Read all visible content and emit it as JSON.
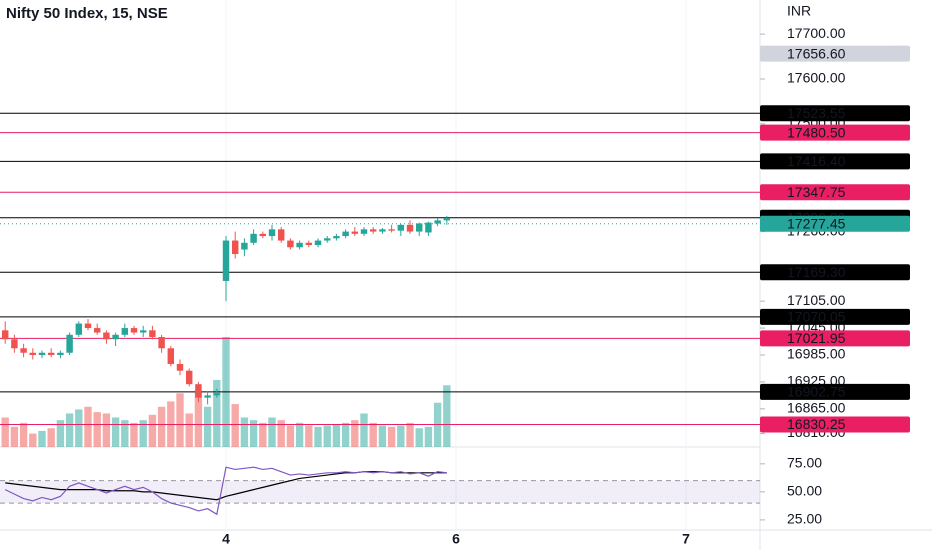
{
  "chart_data": {
    "type": "candlestick",
    "title": "Nifty 50 Index, 15, NSE",
    "currency": "INR",
    "up_color": "#26a69a",
    "down_color": "#ef5350",
    "xlim": [
      -0.565,
      82.04
    ],
    "xticks": [
      {
        "value": 24,
        "label": "4"
      },
      {
        "value": 49,
        "label": "6"
      },
      {
        "value": 74,
        "label": "7"
      }
    ],
    "ylim": [
      16780,
      17776
    ],
    "yticks": [
      {
        "value": 17700,
        "label": "17700.00"
      },
      {
        "value": 17600,
        "label": "17600.00"
      },
      {
        "value": 17500,
        "label": "17500.00"
      },
      {
        "value": 17260,
        "label": "17260.00"
      },
      {
        "value": 17105,
        "label": "17105.00"
      },
      {
        "value": 17045,
        "label": "17045.00"
      },
      {
        "value": 16985,
        "label": "16985.00"
      },
      {
        "value": 16925,
        "label": "16925.00"
      },
      {
        "value": 16865,
        "label": "16865.00"
      },
      {
        "value": 16810,
        "label": "16810.00"
      }
    ],
    "high_marker": {
      "value": 17656.6,
      "label": "17656.60",
      "color": "#d1d4dc"
    },
    "last_price": {
      "value": 17277.45,
      "label": "17277.45",
      "color": "#26a69a"
    },
    "levels": [
      {
        "value": 17523.55,
        "label": "17523.55",
        "color": "#000000"
      },
      {
        "value": 17480.5,
        "label": "17480.50",
        "color": "#e91e63"
      },
      {
        "value": 17416.4,
        "label": "17416.40",
        "color": "#000000"
      },
      {
        "value": 17347.75,
        "label": "17347.75",
        "color": "#e91e63"
      },
      {
        "value": 17290.8,
        "label": "17290.80",
        "color": "#000000"
      },
      {
        "value": 17169.3,
        "label": "17169.30",
        "color": "#000000"
      },
      {
        "value": 17070.05,
        "label": "17070.05",
        "color": "#000000"
      },
      {
        "value": 17021.95,
        "label": "17021.95",
        "color": "#e91e63"
      },
      {
        "value": 16902.75,
        "label": "16902.75",
        "color": "#000000"
      },
      {
        "value": 16830.25,
        "label": "16830.25",
        "color": "#e91e63"
      }
    ],
    "candles": {
      "open": [
        17040,
        17020,
        17000,
        16990,
        16985,
        16990,
        16985,
        16990,
        17030,
        17055,
        17045,
        17035,
        17020,
        17030,
        17045,
        17035,
        17040,
        17025,
        17000,
        16965,
        16950,
        16920,
        16890,
        16895,
        17150,
        17240,
        17220,
        17235,
        17255,
        17250,
        17265,
        17240,
        17225,
        17235,
        17230,
        17240,
        17245,
        17250,
        17260,
        17255,
        17265,
        17260,
        17265,
        17262,
        17275,
        17260,
        17258,
        17278,
        17285
      ],
      "high": [
        17060,
        17030,
        17010,
        17000,
        16995,
        17000,
        16995,
        17035,
        17060,
        17065,
        17055,
        17040,
        17035,
        17055,
        17050,
        17050,
        17050,
        17030,
        17005,
        16975,
        16955,
        16925,
        16905,
        16910,
        17250,
        17260,
        17245,
        17265,
        17260,
        17275,
        17270,
        17245,
        17240,
        17240,
        17245,
        17250,
        17255,
        17265,
        17270,
        17270,
        17270,
        17268,
        17275,
        17278,
        17285,
        17280,
        17282,
        17290,
        17295
      ],
      "low": [
        17010,
        16990,
        16980,
        16975,
        16978,
        16980,
        16978,
        16985,
        17025,
        17040,
        17030,
        17010,
        17005,
        17025,
        17030,
        17025,
        17020,
        16990,
        16960,
        16940,
        16915,
        16880,
        16875,
        16890,
        17105,
        17200,
        17205,
        17230,
        17245,
        17240,
        17235,
        17220,
        17220,
        17225,
        17225,
        17235,
        17240,
        17245,
        17250,
        17250,
        17255,
        17255,
        17258,
        17250,
        17255,
        17250,
        17250,
        17272,
        17275
      ],
      "close": [
        17020,
        17000,
        16990,
        16985,
        16990,
        16985,
        16990,
        17030,
        17055,
        17045,
        17035,
        17020,
        17030,
        17045,
        17035,
        17040,
        17025,
        17000,
        16965,
        16950,
        16920,
        16890,
        16895,
        16900,
        17240,
        17210,
        17235,
        17255,
        17250,
        17265,
        17240,
        17225,
        17235,
        17230,
        17240,
        17245,
        17250,
        17260,
        17255,
        17265,
        17260,
        17265,
        17262,
        17275,
        17260,
        17278,
        17280,
        17285,
        17290
      ]
    },
    "volume": [
      22,
      15,
      18,
      10,
      12,
      14,
      20,
      25,
      28,
      30,
      26,
      25,
      22,
      20,
      18,
      20,
      24,
      30,
      34,
      40,
      25,
      42,
      30,
      50,
      82,
      32,
      22,
      20,
      18,
      22,
      20,
      16,
      18,
      16,
      15,
      16,
      17,
      18,
      20,
      25,
      18,
      16,
      15,
      16,
      18,
      14,
      15,
      33,
      46
    ],
    "rsi": {
      "color": "#7e57c2",
      "ma_color": "#000000",
      "ylim": [
        16,
        90
      ],
      "yticks": [
        {
          "value": 75,
          "label": "75.00"
        },
        {
          "value": 50,
          "label": "50.00"
        },
        {
          "value": 25,
          "label": "25.00"
        }
      ],
      "band": [
        40,
        60
      ],
      "values": [
        52,
        48,
        44,
        42,
        45,
        43,
        46,
        55,
        58,
        55,
        52,
        49,
        52,
        55,
        52,
        54,
        50,
        44,
        40,
        38,
        36,
        33,
        35,
        30,
        72,
        70,
        71,
        72,
        70,
        71,
        68,
        65,
        66,
        65,
        66,
        67,
        67,
        68,
        67,
        68,
        67,
        68,
        67,
        68,
        66,
        67,
        64,
        68,
        67
      ],
      "ma": [
        58,
        57,
        56,
        55,
        54,
        53,
        52,
        52,
        52,
        52,
        52,
        51,
        51,
        51,
        51,
        50,
        50,
        49,
        48,
        47,
        46,
        45,
        44,
        43,
        46,
        48,
        50,
        52,
        54,
        56,
        58,
        60,
        62,
        63,
        64,
        65,
        66,
        67,
        67,
        68,
        68,
        68,
        67,
        67,
        67,
        67,
        67,
        67,
        67
      ]
    }
  }
}
